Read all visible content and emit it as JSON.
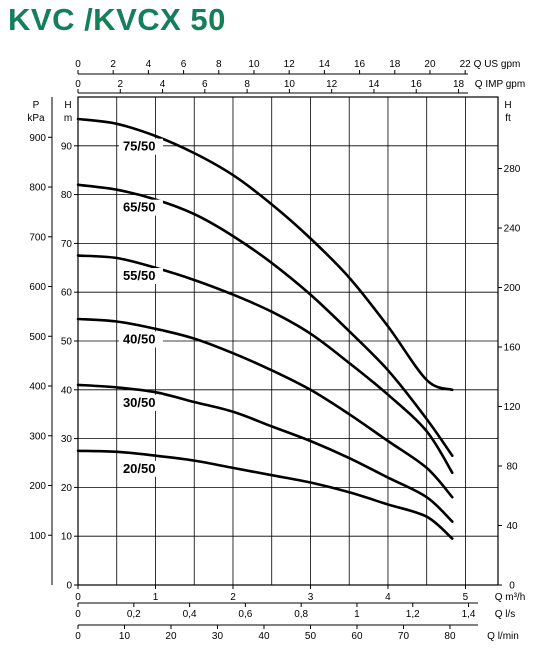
{
  "title": "KVC /KVCX 50",
  "chart_data": {
    "type": "line",
    "title": "KVC /KVCX 50",
    "x_range_m3h": [
      0,
      5
    ],
    "grid": true,
    "axes": {
      "bottom_m3h": {
        "label": "Q m³/h",
        "ticks": [
          "0",
          "1",
          "2",
          "3",
          "4",
          "5"
        ],
        "values": [
          0,
          1,
          2,
          3,
          4,
          5
        ]
      },
      "bottom_ls": {
        "label": "Q l/s",
        "ticks": [
          "0",
          "0,2",
          "0,4",
          "0,6",
          "0,8",
          "1",
          "1,2",
          "1,4"
        ],
        "values": [
          0,
          0.2,
          0.4,
          0.6,
          0.8,
          1.0,
          1.2,
          1.4
        ]
      },
      "bottom_lmin": {
        "label": "Q l/min",
        "ticks": [
          "0",
          "10",
          "20",
          "30",
          "40",
          "50",
          "60",
          "70",
          "80"
        ],
        "values": [
          0,
          10,
          20,
          30,
          40,
          50,
          60,
          70,
          80
        ]
      },
      "top_usgpm": {
        "label": "Q US gpm",
        "ticks": [
          "0",
          "2",
          "4",
          "6",
          "8",
          "10",
          "12",
          "14",
          "16",
          "18",
          "20",
          "22"
        ],
        "values": [
          0,
          2,
          4,
          6,
          8,
          10,
          12,
          14,
          16,
          18,
          20,
          22
        ]
      },
      "top_impgpm": {
        "label": "Q IMP gpm",
        "ticks": [
          "0",
          "2",
          "4",
          "6",
          "8",
          "10",
          "12",
          "14",
          "16",
          "18"
        ],
        "values": [
          0,
          2,
          4,
          6,
          8,
          10,
          12,
          14,
          16,
          18
        ]
      },
      "left_kpa": {
        "label_top": "P",
        "label_unit": "kPa",
        "ticks": [
          "100",
          "200",
          "300",
          "400",
          "500",
          "600",
          "700",
          "800",
          "900"
        ],
        "values": [
          100,
          200,
          300,
          400,
          500,
          600,
          700,
          800,
          900
        ]
      },
      "left_m": {
        "label_top": "H",
        "label_unit": "m",
        "ticks": [
          "0",
          "10",
          "20",
          "30",
          "40",
          "50",
          "60",
          "70",
          "80",
          "90"
        ],
        "values": [
          0,
          10,
          20,
          30,
          40,
          50,
          60,
          70,
          80,
          90
        ]
      },
      "right_ft": {
        "label_top": "H",
        "label_unit": "ft",
        "ticks": [
          "0",
          "40",
          "80",
          "120",
          "160",
          "200",
          "240",
          "280"
        ],
        "values": [
          0,
          40,
          80,
          120,
          160,
          200,
          240,
          280
        ]
      }
    },
    "ylim_m": [
      0,
      100
    ],
    "series": [
      {
        "name": "75/50",
        "x": [
          0,
          0.5,
          1,
          1.5,
          2,
          2.5,
          3,
          3.5,
          4,
          4.5,
          4.83
        ],
        "y": [
          95.5,
          94.5,
          92,
          88.5,
          84,
          78,
          71,
          63,
          53,
          42,
          40
        ]
      },
      {
        "name": "65/50",
        "x": [
          0,
          0.5,
          1,
          1.5,
          2,
          2.5,
          3,
          3.5,
          4,
          4.5,
          4.83
        ],
        "y": [
          82,
          81,
          79,
          76,
          71.5,
          66,
          59.5,
          52,
          44,
          34,
          26.5
        ]
      },
      {
        "name": "55/50",
        "x": [
          0,
          0.5,
          1,
          1.5,
          2,
          2.5,
          3,
          3.5,
          4,
          4.5,
          4.83
        ],
        "y": [
          67.5,
          67,
          65,
          62.5,
          59.5,
          56,
          51.5,
          45.5,
          39,
          31.5,
          23
        ]
      },
      {
        "name": "40/50",
        "x": [
          0,
          0.5,
          1,
          1.5,
          2,
          2.5,
          3,
          3.5,
          4,
          4.5,
          4.83
        ],
        "y": [
          54.5,
          54,
          52.5,
          50.5,
          47.5,
          44,
          40,
          35,
          29.5,
          24,
          18
        ]
      },
      {
        "name": "30/50",
        "x": [
          0,
          0.5,
          1,
          1.5,
          2,
          2.5,
          3,
          3.5,
          4,
          4.5,
          4.83
        ],
        "y": [
          41,
          40.5,
          39.5,
          37.5,
          35.5,
          32.5,
          29.5,
          26,
          22,
          18,
          13
        ]
      },
      {
        "name": "20/50",
        "x": [
          0,
          0.5,
          1,
          1.5,
          2,
          2.5,
          3,
          3.5,
          4,
          4.5,
          4.83
        ],
        "y": [
          27.5,
          27.3,
          26.5,
          25.5,
          24,
          22.5,
          21,
          19,
          16.5,
          14,
          9.5
        ]
      }
    ]
  }
}
